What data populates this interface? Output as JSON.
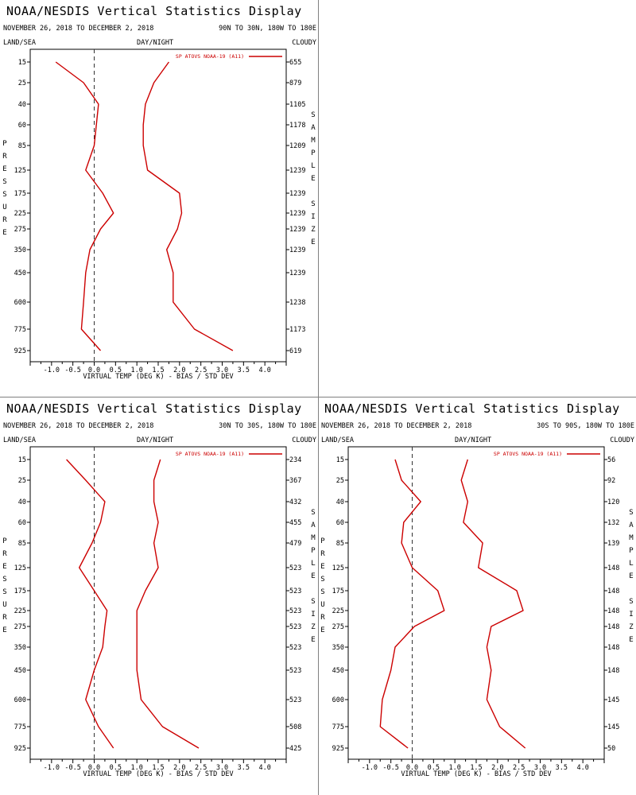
{
  "chart_data": [
    {
      "type": "line",
      "title": "NOAA/NESDIS Vertical Statistics Display",
      "date_range": "NOVEMBER 26, 2018 TO DECEMBER 2, 2018",
      "region": "90N TO 30N, 180W TO 180E",
      "header_left": "LAND/SEA",
      "header_center": "DAY/NIGHT",
      "header_right": "CLOUDY",
      "ylabel": "PRESSURE",
      "y2label": "SAMPLE SIZE",
      "xlabel": "VIRTUAL TEMP (DEG K) - BIAS / STD DEV",
      "xlim": [
        -1.5,
        4.5
      ],
      "xticks": [
        "-1.0",
        "-0.5",
        "0.0",
        "0.5",
        "1.0",
        "1.5",
        "2.0",
        "2.5",
        "3.0",
        "3.5",
        "4.0"
      ],
      "pressure_levels": [
        "15",
        "25",
        "40",
        "60",
        "85",
        "125",
        "175",
        "225",
        "275",
        "350",
        "450",
        "600",
        "775",
        "925"
      ],
      "sample_size": [
        "655",
        "879",
        "1105",
        "1178",
        "1209",
        "1239",
        "1239",
        "1239",
        "1239",
        "1239",
        "1239",
        "1238",
        "1173",
        "619"
      ],
      "legend": "SP ATOVS NOAA-19 (A11)",
      "legend_position": "top-right",
      "line_color": "#cc0000",
      "series": [
        {
          "kind": "bias",
          "values": [
            -0.9,
            -0.25,
            0.1,
            0.05,
            0.0,
            -0.2,
            0.2,
            0.45,
            0.15,
            -0.1,
            -0.2,
            -0.25,
            -0.3,
            0.15
          ]
        },
        {
          "kind": "std_dev",
          "values": [
            1.75,
            1.4,
            1.2,
            1.15,
            1.15,
            1.25,
            2.0,
            2.05,
            1.95,
            1.7,
            1.85,
            1.85,
            2.35,
            3.25
          ]
        }
      ]
    },
    {
      "type": "line",
      "title": "NOAA/NESDIS Vertical Statistics Display",
      "date_range": "NOVEMBER 26, 2018 TO DECEMBER 2, 2018",
      "region": "30N TO 30S, 180W TO 180E",
      "header_left": "LAND/SEA",
      "header_center": "DAY/NIGHT",
      "header_right": "CLOUDY",
      "ylabel": "PRESSURE",
      "y2label": "SAMPLE SIZE",
      "xlabel": "VIRTUAL TEMP (DEG K) - BIAS / STD DEV",
      "xlim": [
        -1.5,
        4.5
      ],
      "xticks": [
        "-1.0",
        "-0.5",
        "0.0",
        "0.5",
        "1.0",
        "1.5",
        "2.0",
        "2.5",
        "3.0",
        "3.5",
        "4.0"
      ],
      "pressure_levels": [
        "15",
        "25",
        "40",
        "60",
        "85",
        "125",
        "175",
        "225",
        "275",
        "350",
        "450",
        "600",
        "775",
        "925"
      ],
      "sample_size": [
        "234",
        "367",
        "432",
        "455",
        "479",
        "523",
        "523",
        "523",
        "523",
        "523",
        "523",
        "523",
        "508",
        "425"
      ],
      "legend": "SP ATOVS NOAA-19 (A11)",
      "legend_position": "top-right",
      "line_color": "#cc0000",
      "series": [
        {
          "kind": "bias",
          "values": [
            -0.65,
            -0.2,
            0.25,
            0.15,
            -0.05,
            -0.35,
            0.0,
            0.3,
            0.25,
            0.2,
            0.0,
            -0.2,
            0.1,
            0.45
          ]
        },
        {
          "kind": "std_dev",
          "values": [
            1.55,
            1.4,
            1.4,
            1.5,
            1.4,
            1.5,
            1.2,
            1.0,
            1.0,
            1.0,
            1.0,
            1.1,
            1.6,
            2.45
          ]
        }
      ]
    },
    {
      "type": "line",
      "title": "NOAA/NESDIS Vertical Statistics Display",
      "date_range": "NOVEMBER 26, 2018 TO DECEMBER 2, 2018",
      "region": "30S TO 90S, 180W TO 180E",
      "header_left": "LAND/SEA",
      "header_center": "DAY/NIGHT",
      "header_right": "CLOUDY",
      "ylabel": "PRESSURE",
      "y2label": "SAMPLE SIZE",
      "xlabel": "VIRTUAL TEMP (DEG K) - BIAS / STD DEV",
      "xlim": [
        -1.5,
        4.5
      ],
      "xticks": [
        "-1.0",
        "-0.5",
        "0.0",
        "0.5",
        "1.0",
        "1.5",
        "2.0",
        "2.5",
        "3.0",
        "3.5",
        "4.0"
      ],
      "pressure_levels": [
        "15",
        "25",
        "40",
        "60",
        "85",
        "125",
        "175",
        "225",
        "275",
        "350",
        "450",
        "600",
        "775",
        "925"
      ],
      "sample_size": [
        "56",
        "92",
        "120",
        "132",
        "139",
        "148",
        "148",
        "148",
        "148",
        "148",
        "148",
        "145",
        "145",
        "50"
      ],
      "legend": "SP ATOVS NOAA-19 (A11)",
      "legend_position": "top-right",
      "line_color": "#cc0000",
      "series": [
        {
          "kind": "bias",
          "values": [
            -0.4,
            -0.25,
            0.2,
            -0.2,
            -0.25,
            0.0,
            0.6,
            0.75,
            0.05,
            -0.4,
            -0.5,
            -0.7,
            -0.75,
            -0.1
          ]
        },
        {
          "kind": "std_dev",
          "values": [
            1.3,
            1.15,
            1.3,
            1.2,
            1.65,
            1.55,
            2.45,
            2.6,
            1.85,
            1.75,
            1.85,
            1.75,
            2.05,
            2.65
          ]
        }
      ]
    }
  ]
}
